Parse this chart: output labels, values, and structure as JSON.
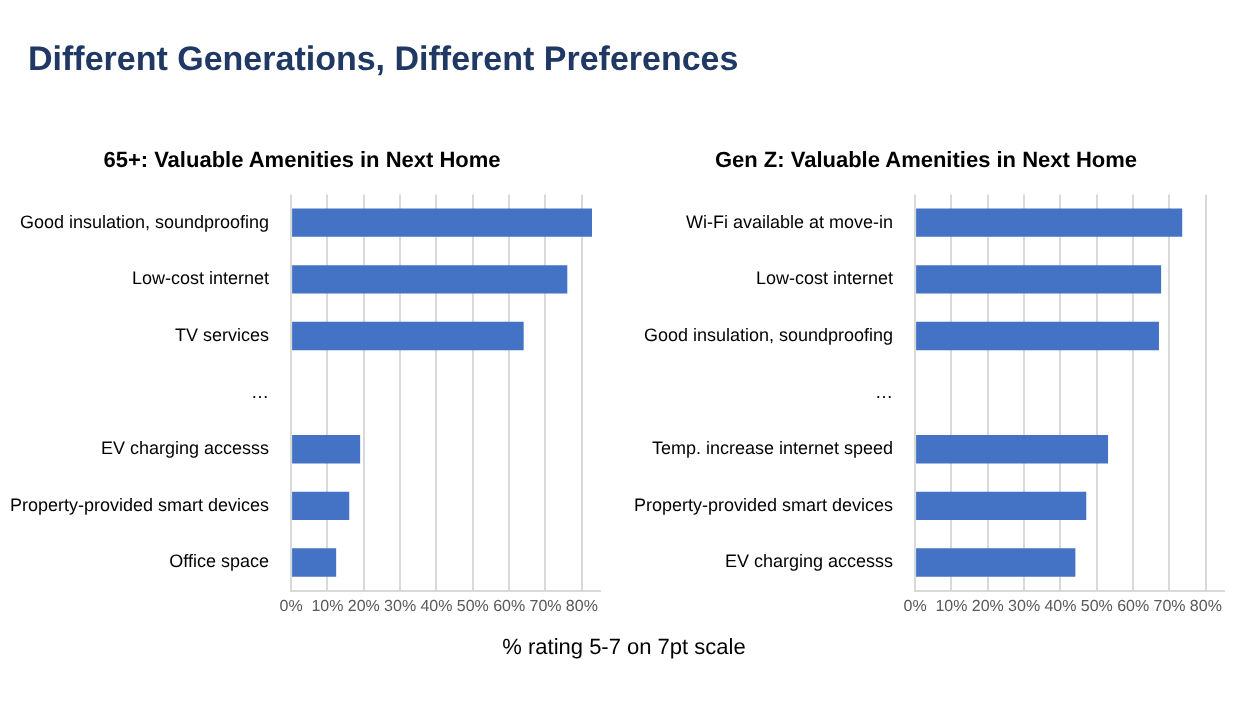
{
  "chart_data": [
    {
      "type": "bar",
      "orientation": "horizontal",
      "title": "65+: Valuable Amenities in Next Home",
      "annotations": [
        "Different Generations, Different Preferences"
      ],
      "categories": [
        "Good insulation, soundproofing",
        "Low-cost internet",
        "TV services",
        "…",
        "EV charging accesss",
        "Property-provided smart devices",
        "Office space"
      ],
      "values": [
        82.8,
        76,
        64,
        null,
        19,
        16,
        12.4
      ],
      "color": "#4472c4",
      "xlim": [
        0,
        85
      ],
      "xticks": [
        {
          "value": 0,
          "label": "0%"
        },
        {
          "value": 10,
          "label": "10%"
        },
        {
          "value": 20,
          "label": "20%"
        },
        {
          "value": 30,
          "label": "30%"
        },
        {
          "value": 40,
          "label": "40%"
        },
        {
          "value": 50,
          "label": "50%"
        },
        {
          "value": 60,
          "label": "60%"
        },
        {
          "value": 70,
          "label": "70%"
        },
        {
          "value": 80,
          "label": "80%"
        }
      ],
      "grid": "x",
      "legend": false
    },
    {
      "type": "bar",
      "orientation": "horizontal",
      "title": "Gen Z: Valuable Amenities in Next Home",
      "annotations": [
        "% rating 5-7 on 7pt scale"
      ],
      "categories": [
        "Wi-Fi available at move-in",
        "Low-cost internet",
        "Good insulation, soundproofing",
        "…",
        "Temp. increase internet speed",
        "Property-provided smart devices",
        "EV charging accesss"
      ],
      "values": [
        73.5,
        67.7,
        67.1,
        null,
        53.1,
        47.1,
        44.1
      ],
      "color": "#4472c4",
      "xlim": [
        0,
        85
      ],
      "xticks": [
        {
          "value": 0,
          "label": "0%"
        },
        {
          "value": 10,
          "label": "10%"
        },
        {
          "value": 20,
          "label": "20%"
        },
        {
          "value": 30,
          "label": "30%"
        },
        {
          "value": 40,
          "label": "40%"
        },
        {
          "value": 50,
          "label": "50%"
        },
        {
          "value": 60,
          "label": "60%"
        },
        {
          "value": 70,
          "label": "70%"
        },
        {
          "value": 80,
          "label": "80%"
        }
      ],
      "grid": "x",
      "legend": false
    }
  ]
}
